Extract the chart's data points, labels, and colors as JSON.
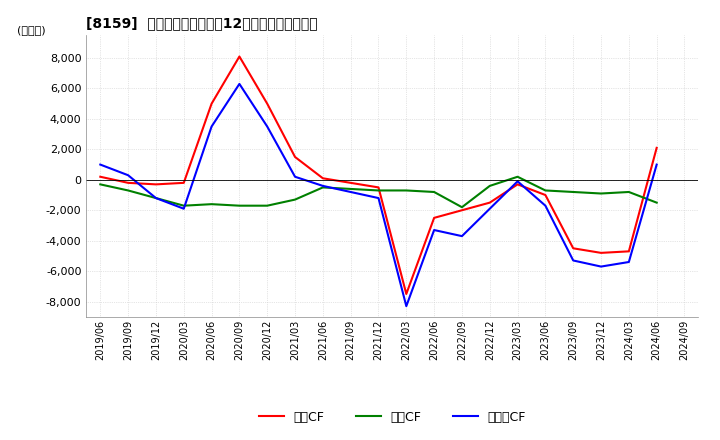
{
  "title": "[8159]  キャッシュフローの12か月移動合計の推移",
  "ylabel": "(百万円)",
  "ylim": [
    -9000,
    9500
  ],
  "yticks": [
    -8000,
    -6000,
    -4000,
    -2000,
    0,
    2000,
    4000,
    6000,
    8000
  ],
  "background_color": "#ffffff",
  "grid_color": "#cccccc",
  "dates": [
    "2019/06",
    "2019/09",
    "2019/12",
    "2020/03",
    "2020/06",
    "2020/09",
    "2020/12",
    "2021/03",
    "2021/06",
    "2021/09",
    "2021/12",
    "2022/03",
    "2022/06",
    "2022/09",
    "2022/12",
    "2023/03",
    "2023/06",
    "2023/09",
    "2023/12",
    "2024/03",
    "2024/06",
    "2024/09"
  ],
  "operating_cf": [
    200,
    -200,
    -300,
    -200,
    5000,
    8100,
    5000,
    1500,
    100,
    -200,
    -500,
    -7500,
    -2500,
    -2000,
    -1500,
    -300,
    -1000,
    -4500,
    -4800,
    -4700,
    2100,
    null
  ],
  "investing_cf": [
    -300,
    -700,
    -1200,
    -1700,
    -1600,
    -1700,
    -1700,
    -1300,
    -500,
    -600,
    -700,
    -700,
    -800,
    -1800,
    -400,
    200,
    -700,
    -800,
    -900,
    -800,
    -1500,
    null
  ],
  "free_cf": [
    1000,
    300,
    -1200,
    -1900,
    3500,
    6300,
    3500,
    200,
    -400,
    -800,
    -1200,
    -8300,
    -3300,
    -3700,
    -1900,
    -100,
    -1700,
    -5300,
    -5700,
    -5400,
    1000,
    null
  ],
  "operating_color": "#ff0000",
  "investing_color": "#008000",
  "free_color": "#0000ff",
  "line_width": 1.5
}
